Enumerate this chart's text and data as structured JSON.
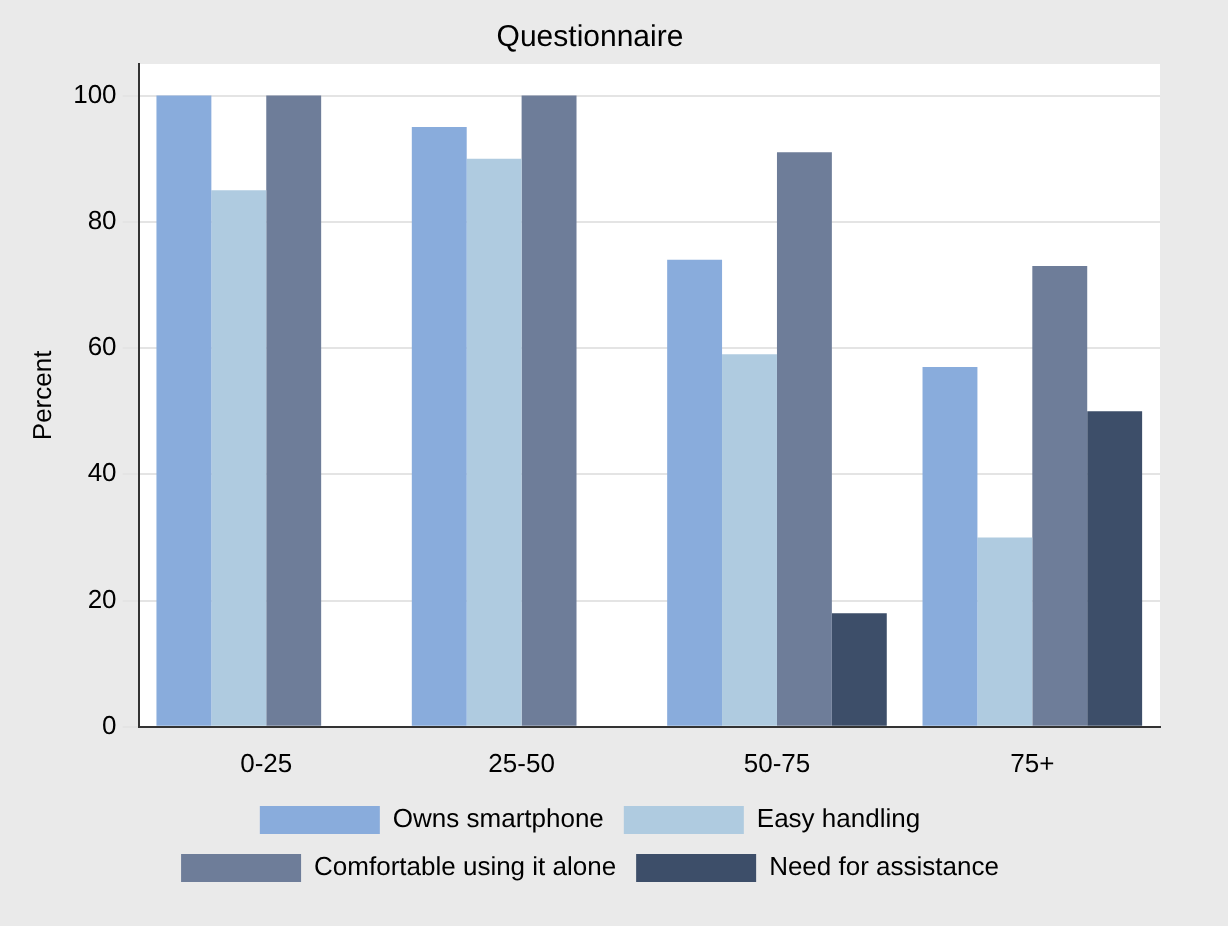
{
  "chart_data": {
    "type": "bar",
    "title": "Questionnaire",
    "ylabel": "Percent",
    "categories": [
      "0-25",
      "25-50",
      "50-75",
      "75+"
    ],
    "series": [
      {
        "name": "Owns smartphone",
        "color": "#89acdc",
        "values": [
          100,
          95,
          74,
          57
        ]
      },
      {
        "name": "Easy handling",
        "color": "#afcbe0",
        "values": [
          85,
          90,
          59,
          30
        ]
      },
      {
        "name": "Comfortable using it alone",
        "color": "#6e7d99",
        "values": [
          100,
          100,
          91,
          73
        ]
      },
      {
        "name": "Need for assistance",
        "color": "#3d4e69",
        "values": [
          0,
          0,
          18,
          50
        ]
      }
    ],
    "ylim": [
      0,
      105
    ],
    "yticks": [
      0,
      20,
      40,
      60,
      80,
      100
    ],
    "grid": "y",
    "legend": "bottom"
  }
}
